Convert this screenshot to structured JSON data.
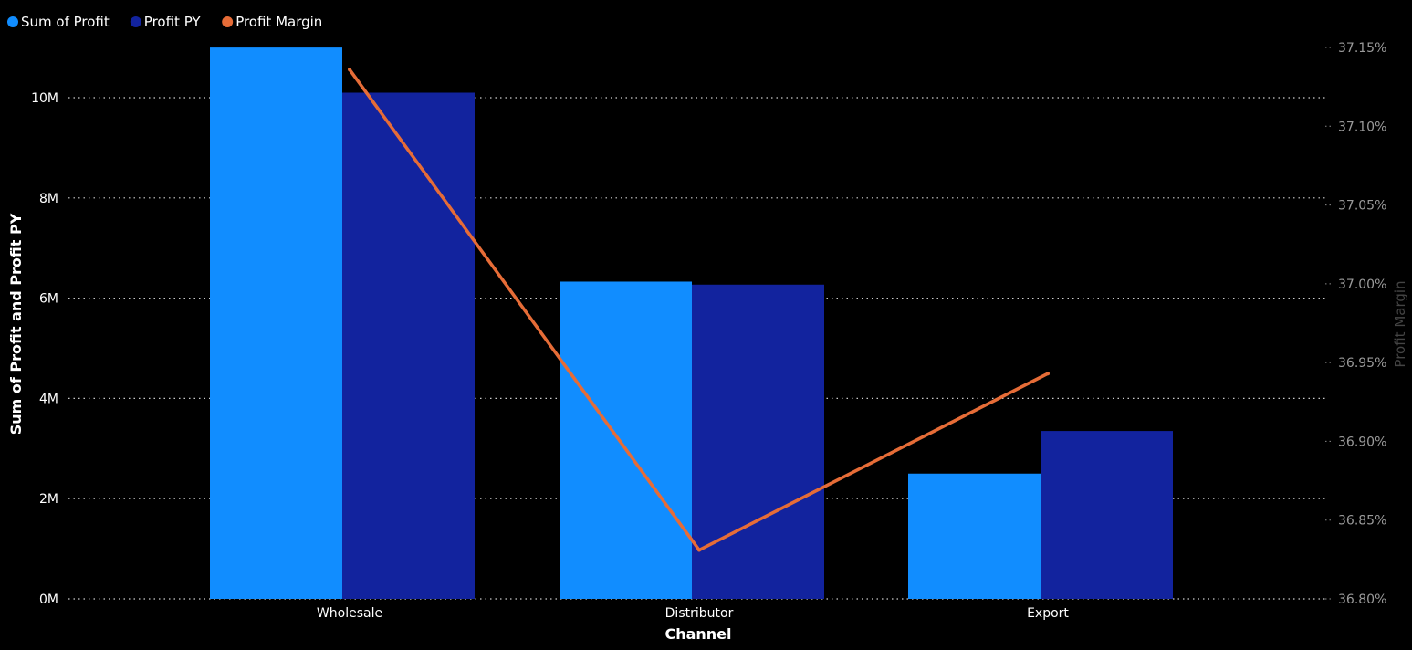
{
  "chart_data": {
    "type": "bar",
    "categories": [
      "Wholesale",
      "Distributor",
      "Export"
    ],
    "series": [
      {
        "name": "Sum of Profit",
        "type": "bar",
        "axis": "left",
        "values": [
          11.0,
          6.33,
          2.5
        ]
      },
      {
        "name": "Profit PY",
        "type": "bar",
        "axis": "left",
        "values": [
          10.1,
          6.27,
          3.35
        ]
      },
      {
        "name": "Profit Margin",
        "type": "line",
        "axis": "right",
        "values": [
          37.136,
          36.831,
          36.943
        ]
      }
    ],
    "xlabel": "Channel",
    "ylabel": "Sum of Profit and Profit PY",
    "y2label": "Profit Margin",
    "ylim": [
      0,
      10.9
    ],
    "y2lim": [
      36.8,
      37.15
    ],
    "y_ticks": [
      {
        "value": 0,
        "label": "0M"
      },
      {
        "value": 2,
        "label": "2M"
      },
      {
        "value": 4,
        "label": "4M"
      },
      {
        "value": 6,
        "label": "6M"
      },
      {
        "value": 8,
        "label": "8M"
      },
      {
        "value": 10,
        "label": "10M"
      }
    ],
    "y2_ticks": [
      {
        "value": 36.8,
        "label": "36.80%"
      },
      {
        "value": 36.85,
        "label": "36.85%"
      },
      {
        "value": 36.9,
        "label": "36.90%"
      },
      {
        "value": 36.95,
        "label": "36.95%"
      },
      {
        "value": 37.0,
        "label": "37.00%"
      },
      {
        "value": 37.05,
        "label": "37.05%"
      },
      {
        "value": 37.1,
        "label": "37.10%"
      },
      {
        "value": 37.15,
        "label": "37.15%"
      }
    ],
    "grid": true,
    "legend_position": "top-left",
    "colors": {
      "Sum of Profit": "#118DFF",
      "Profit PY": "#12239E",
      "Profit Margin": "#E66C37",
      "background": "#000000",
      "gridline": "#cccccc"
    }
  }
}
